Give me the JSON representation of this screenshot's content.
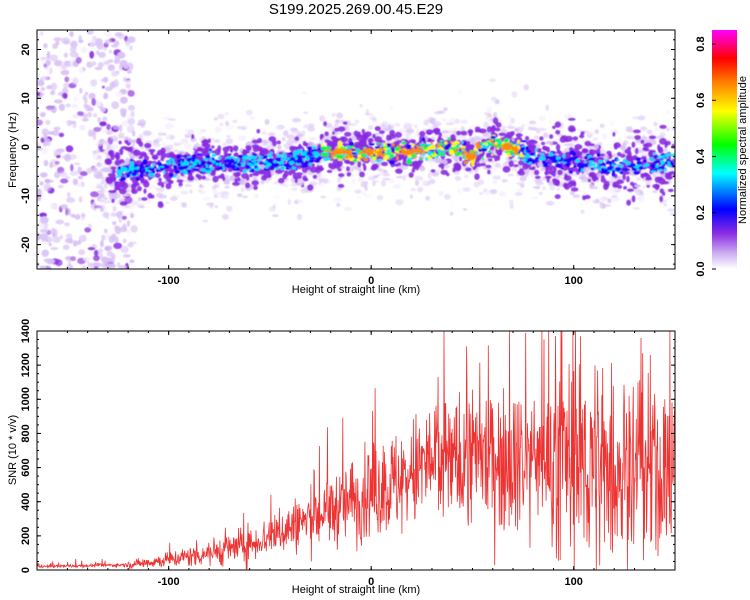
{
  "title": "S199.2025.269.00.45.E29",
  "chart_data": [
    {
      "type": "heatmap",
      "name": "spectrogram",
      "xlabel": "Height of straight line (km)",
      "ylabel": "Frequency (Hz)",
      "xlim": [
        -165,
        150
      ],
      "ylim": [
        -25,
        24
      ],
      "xticks": [
        -100,
        0,
        100
      ],
      "yticks": [
        -20,
        -10,
        0,
        10,
        20
      ],
      "colorbar": {
        "label": "Normalized spectral amplitude",
        "range": [
          0.0,
          0.85
        ],
        "ticks": [
          0.0,
          0.2,
          0.4,
          0.6,
          0.8
        ],
        "colors": [
          "#ffffff",
          "#8a2be2",
          "#0000ff",
          "#00ffff",
          "#00ff00",
          "#ffff00",
          "#ff8000",
          "#ff0000",
          "#ff00ff"
        ]
      },
      "ridge": {
        "description_points_x": [
          -120,
          -80,
          -40,
          -20,
          0,
          20,
          40,
          50,
          60,
          80,
          100,
          120,
          150
        ],
        "description_points_y": [
          -5,
          -3,
          -3,
          -1,
          -1,
          -1,
          0,
          -2,
          1,
          -2,
          -3,
          -4,
          -3
        ]
      }
    },
    {
      "type": "line",
      "name": "snr",
      "xlabel": "Height of straight line (km)",
      "ylabel": "SNR (10 * v/v)",
      "xlim": [
        -165,
        150
      ],
      "ylim": [
        0,
        1400
      ],
      "xticks": [
        -100,
        0,
        100
      ],
      "yticks": [
        0,
        200,
        400,
        600,
        800,
        1000,
        1200,
        1400
      ],
      "color": "#ee3333",
      "envelope_x": [
        -165,
        -120,
        -100,
        -80,
        -60,
        -40,
        -20,
        0,
        20,
        30,
        40,
        60,
        80,
        100,
        120,
        150
      ],
      "envelope_y": [
        20,
        30,
        60,
        100,
        150,
        250,
        350,
        450,
        550,
        650,
        650,
        680,
        650,
        650,
        600,
        550
      ]
    }
  ]
}
